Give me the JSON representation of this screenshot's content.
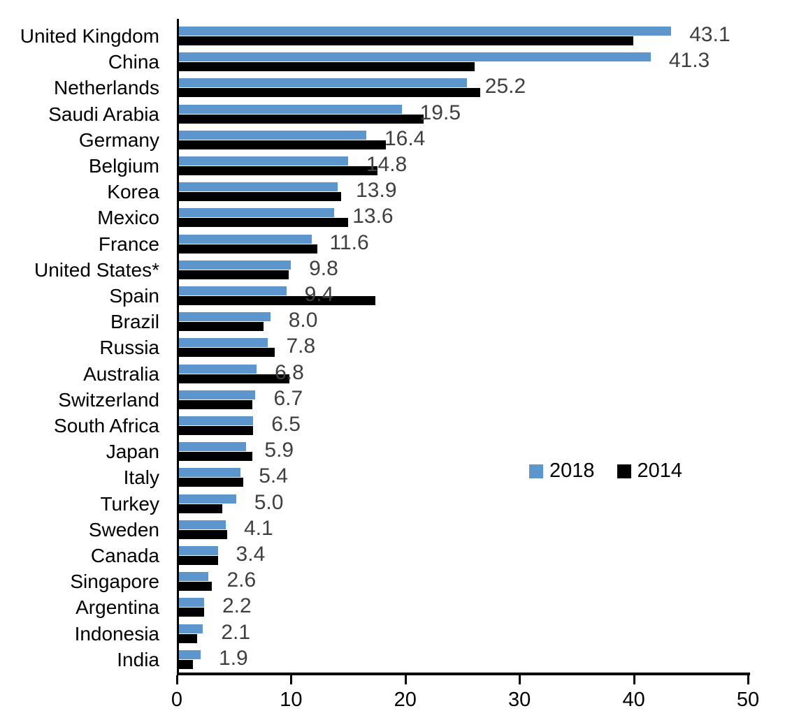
{
  "chart_data": {
    "type": "bar",
    "orientation": "horizontal",
    "title": "",
    "xlabel": "",
    "ylabel": "",
    "xlim": [
      0,
      50
    ],
    "xtick_labels": [
      "0",
      "10",
      "20",
      "30",
      "40",
      "50"
    ],
    "grid": false,
    "legend_position": "middle-right",
    "categories": [
      "United Kingdom",
      "China",
      "Netherlands",
      "Saudi Arabia",
      "Germany",
      "Belgium",
      "Korea",
      "Mexico",
      "France",
      "United States*",
      "Spain",
      "Brazil",
      "Russia",
      "Australia",
      "Switzerland",
      "South Africa",
      "Japan",
      "Italy",
      "Turkey",
      "Sweden",
      "Canada",
      "Singapore",
      "Argentina",
      "Indonesia",
      "India"
    ],
    "series": [
      {
        "name": "2018",
        "color": "#5c96cc",
        "values": [
          43.1,
          41.3,
          25.2,
          19.5,
          16.4,
          14.8,
          13.9,
          13.6,
          11.6,
          9.8,
          9.4,
          8.0,
          7.8,
          6.8,
          6.7,
          6.5,
          5.9,
          5.4,
          5.0,
          4.1,
          3.4,
          2.6,
          2.2,
          2.1,
          1.9
        ]
      },
      {
        "name": "2014",
        "color": "#000000",
        "values": [
          39.8,
          25.9,
          26.4,
          21.4,
          18.1,
          17.4,
          14.2,
          14.8,
          12.1,
          9.6,
          17.2,
          7.4,
          8.4,
          9.7,
          6.4,
          6.5,
          6.4,
          5.6,
          3.8,
          4.2,
          3.4,
          2.9,
          2.2,
          1.6,
          1.2
        ]
      }
    ],
    "value_labels": [
      "43.1",
      "41.3",
      "25.2",
      "19.5",
      "16.4",
      "14.8",
      "13.9",
      "13.6",
      "11.6",
      "9.8",
      "9.4",
      "8.0",
      "7.8",
      "6.8",
      "6.7",
      "6.5",
      "5.9",
      "5.4",
      "5.0",
      "4.1",
      "3.4",
      "2.6",
      "2.2",
      "2.1",
      "1.9"
    ]
  },
  "colors": {
    "bar_2018": "#5c96cc",
    "bar_2014": "#000000",
    "value_label": "#3f3f3f",
    "axis": "#000000",
    "background": "#ffffff"
  }
}
